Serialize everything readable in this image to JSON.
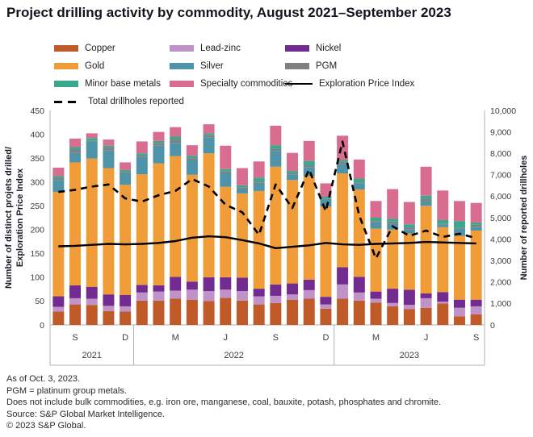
{
  "title": "Project drilling activity by commodity, August 2021–September 2023",
  "legend": [
    {
      "label": "Copper",
      "type": "patch",
      "color": "#c05a28"
    },
    {
      "label": "Lead-zinc",
      "type": "patch",
      "color": "#bf93c7"
    },
    {
      "label": "Nickel",
      "type": "patch",
      "color": "#722b8e"
    },
    {
      "label": "Gold",
      "type": "patch",
      "color": "#f09c38"
    },
    {
      "label": "Silver",
      "type": "patch",
      "color": "#4f93a8"
    },
    {
      "label": "PGM",
      "type": "patch",
      "color": "#808080"
    },
    {
      "label": "Minor base metals",
      "type": "patch",
      "color": "#3aa88d"
    },
    {
      "label": "Specialty commodities",
      "type": "patch",
      "color": "#d96d8f"
    },
    {
      "label": "Exploration Price Index",
      "type": "line",
      "color": "#000000"
    },
    {
      "label": "Total drillholes reported",
      "type": "dash",
      "color": "#000000"
    }
  ],
  "chart_data": {
    "type": "bar",
    "subtype": "stacked-with-lines",
    "months": [
      "Aug 2021",
      "Sep 2021",
      "Oct 2021",
      "Nov 2021",
      "Dec 2021",
      "Jan 2022",
      "Feb 2022",
      "Mar 2022",
      "Apr 2022",
      "May 2022",
      "Jun 2022",
      "Jul 2022",
      "Aug 2022",
      "Sep 2022",
      "Oct 2022",
      "Nov 2022",
      "Dec 2022",
      "Jan 2023",
      "Feb 2023",
      "Mar 2023",
      "Apr 2023",
      "May 2023",
      "Jun 2023",
      "Jul 2023",
      "Aug 2023",
      "Sep 2023"
    ],
    "month_tick_letters": [
      "",
      "S",
      "",
      "",
      "D",
      "",
      "",
      "M",
      "",
      "",
      "J",
      "",
      "",
      "S",
      "",
      "",
      "D",
      "",
      "",
      "M",
      "",
      "",
      "J",
      "",
      "",
      "S"
    ],
    "years": [
      {
        "label": "2021",
        "from": 0,
        "to": 4
      },
      {
        "label": "2022",
        "from": 5,
        "to": 16
      },
      {
        "label": "2023",
        "from": 17,
        "to": 25
      }
    ],
    "series": [
      {
        "name": "Copper",
        "color": "#c05a28",
        "values": [
          28,
          43,
          42,
          29,
          28,
          51,
          51,
          55,
          53,
          50,
          57,
          51,
          43,
          46,
          53,
          55,
          34,
          55,
          51,
          47,
          39,
          33,
          36,
          45,
          18,
          22
        ]
      },
      {
        "name": "Lead-zinc",
        "color": "#bf93c7",
        "values": [
          10,
          13,
          13,
          11,
          11,
          17,
          19,
          17,
          21,
          21,
          17,
          20,
          17,
          15,
          11,
          18,
          9,
          30,
          17,
          8,
          7,
          9,
          20,
          4,
          18,
          17
        ]
      },
      {
        "name": "Nickel",
        "color": "#722b8e",
        "values": [
          22,
          27,
          25,
          24,
          24,
          16,
          13,
          29,
          17,
          29,
          26,
          28,
          16,
          24,
          23,
          22,
          16,
          36,
          33,
          15,
          30,
          32,
          10,
          20,
          17,
          14
        ]
      },
      {
        "name": "Gold",
        "color": "#f09c38",
        "values": [
          219,
          258,
          269,
          265,
          231,
          232,
          256,
          253,
          224,
          260,
          190,
          177,
          205,
          247,
          217,
          217,
          189,
          197,
          183,
          132,
          124,
          118,
          184,
          136,
          134,
          145
        ]
      },
      {
        "name": "Silver",
        "color": "#4f93a8",
        "values": [
          25,
          20,
          36,
          37,
          24,
          37,
          37,
          28,
          31,
          33,
          28,
          10,
          18,
          33,
          12,
          19,
          16,
          20,
          13,
          13,
          13,
          8,
          9,
          5,
          15,
          7
        ]
      },
      {
        "name": "PGM",
        "color": "#808080",
        "values": [
          4,
          7,
          1,
          6,
          3,
          3,
          6,
          7,
          4,
          5,
          4,
          3,
          3,
          4,
          3,
          4,
          1,
          4,
          2,
          3,
          4,
          4,
          5,
          2,
          2,
          5
        ]
      },
      {
        "name": "Minor base metals",
        "color": "#3aa88d",
        "values": [
          4,
          5,
          6,
          4,
          4,
          4,
          4,
          6,
          5,
          4,
          5,
          4,
          7,
          8,
          4,
          9,
          4,
          4,
          8,
          7,
          6,
          7,
          7,
          8,
          14,
          5
        ]
      },
      {
        "name": "Specialty commodities",
        "color": "#d96d8f",
        "values": [
          18,
          18,
          10,
          13,
          16,
          25,
          19,
          20,
          22,
          19,
          49,
          36,
          34,
          41,
          38,
          42,
          28,
          51,
          40,
          35,
          62,
          47,
          61,
          62,
          42,
          41
        ]
      }
    ],
    "lines": [
      {
        "name": "Exploration Price Index",
        "axis": "left",
        "style": "solid",
        "color": "#000000",
        "values": [
          165,
          166,
          168,
          170,
          169,
          170,
          172,
          176,
          183,
          186,
          184,
          178,
          171,
          161,
          164,
          167,
          172,
          169,
          168,
          170,
          171,
          172,
          174,
          173,
          172,
          171
        ]
      },
      {
        "name": "Total drillholes reported",
        "axis": "right",
        "style": "dashed",
        "color": "#000000",
        "values": [
          6200,
          6300,
          6450,
          6550,
          5900,
          5750,
          6050,
          6250,
          6800,
          6450,
          5600,
          5250,
          4200,
          6550,
          5450,
          7250,
          5300,
          8550,
          5100,
          3100,
          4600,
          4150,
          4400,
          4100,
          4250,
          4050
        ]
      }
    ],
    "left_axis": {
      "title_line1": "Number of distinct projets drilled/",
      "title_line2": "Exploration Price Index",
      "min": 0,
      "max": 450,
      "step": 50
    },
    "right_axis": {
      "title": "Number of reported drillholes",
      "min": 0,
      "max": 10000,
      "step": 1000
    },
    "grid": false,
    "legend_position": "top"
  },
  "footer": {
    "lines": [
      "As of Oct. 3, 2023.",
      "PGM = platinum group metals.",
      "Does not include bulk commodities, e.g. iron ore, manganese, coal, bauxite, potash, phosphates and chromite.",
      "Source: S&P Global Market Intelligence.",
      "© 2023 S&P Global."
    ]
  }
}
